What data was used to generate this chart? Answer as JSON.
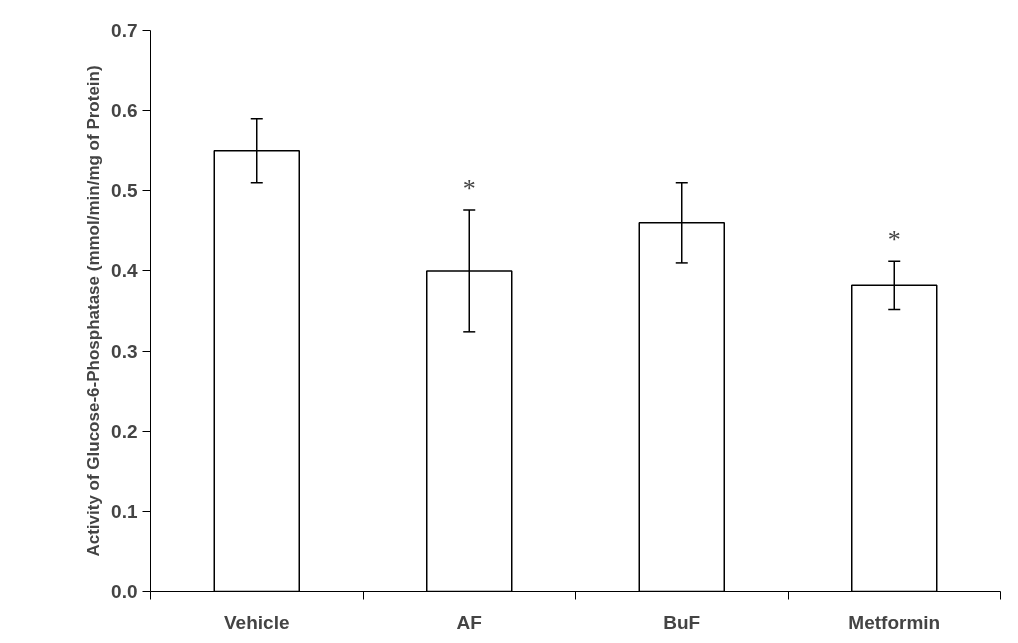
{
  "chart_data": {
    "type": "bar",
    "ylabel": "Activity of Glucose-6-Phosphatase (mmol/min/mg of Protein)",
    "categories": [
      "Vehicle",
      "AF",
      "BuF",
      "Metformin"
    ],
    "values": [
      0.55,
      0.4,
      0.46,
      0.382
    ],
    "errors": [
      0.04,
      0.076,
      0.05,
      0.03
    ],
    "color": "#ffffff",
    "ylim": [
      0,
      0.7
    ],
    "yticks": [
      {
        "value": 0,
        "label": "0.0"
      },
      {
        "value": 0.1,
        "label": "0.1"
      },
      {
        "value": 0.2,
        "label": "0.2"
      },
      {
        "value": 0.3,
        "label": "0.3"
      },
      {
        "value": 0.4,
        "label": "0.4"
      },
      {
        "value": 0.5,
        "label": "0.5"
      },
      {
        "value": 0.6,
        "label": "0.6"
      },
      {
        "value": 0.7,
        "label": "0.7"
      }
    ],
    "value_labels": [
      null,
      "*",
      null,
      "*"
    ],
    "grid": false
  }
}
